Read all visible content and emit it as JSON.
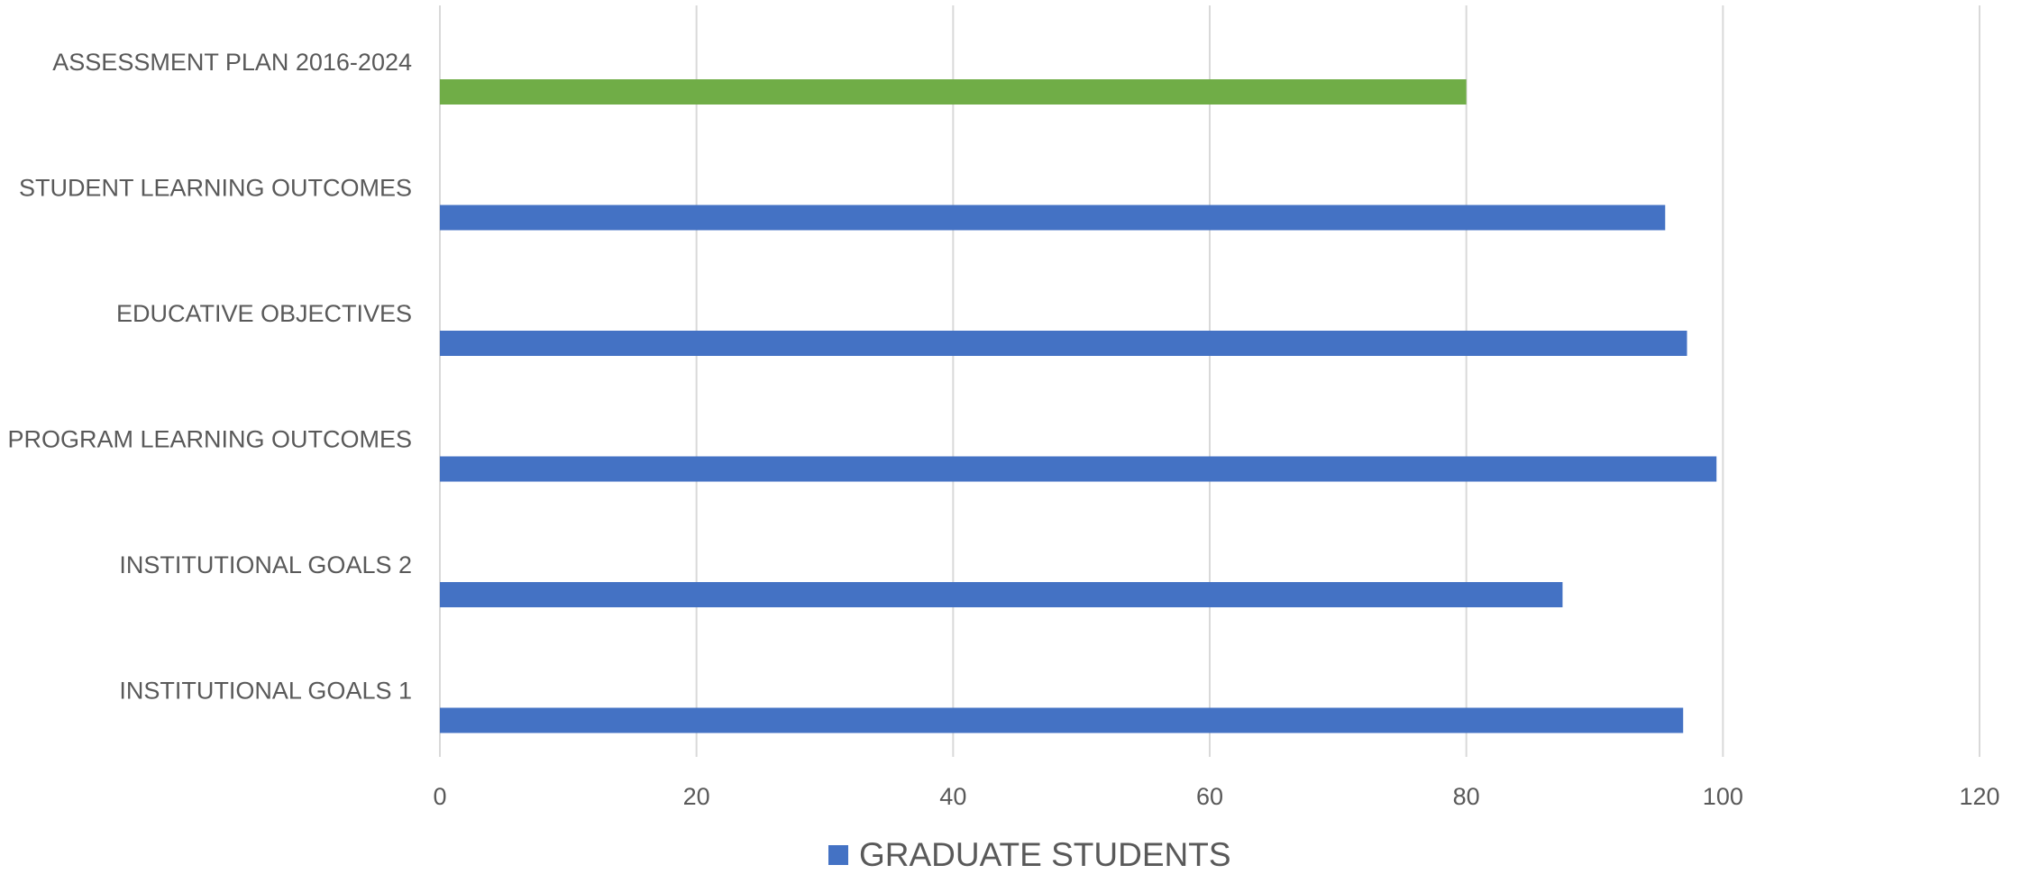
{
  "chart_data": {
    "type": "bar",
    "orientation": "horizontal",
    "title": "",
    "xlabel": "",
    "ylabel": "",
    "categories": [
      "ASSESSMENT PLAN 2016-2024",
      "STUDENT LEARNING OUTCOMES",
      "EDUCATIVE OBJECTIVES",
      "PROGRAM LEARNING OUTCOMES",
      "INSTITUTIONAL GOALS 2",
      "INSTITUTIONAL GOALS 1"
    ],
    "series": [
      {
        "name": "GRADUATE STUDENTS",
        "values": [
          80,
          95.5,
          97.2,
          99.5,
          87.5,
          96.9
        ],
        "color": "#4472c4",
        "point_colors": [
          "#70ad47",
          "#4472c4",
          "#4472c4",
          "#4472c4",
          "#4472c4",
          "#4472c4"
        ]
      }
    ],
    "xlim": [
      0,
      120
    ],
    "xticks": [
      "0",
      "20",
      "40",
      "60",
      "80",
      "100",
      "120"
    ],
    "grid": true,
    "legend": "bottom"
  },
  "legend": {
    "label": "GRADUATE STUDENTS",
    "color": "#4472c4"
  }
}
